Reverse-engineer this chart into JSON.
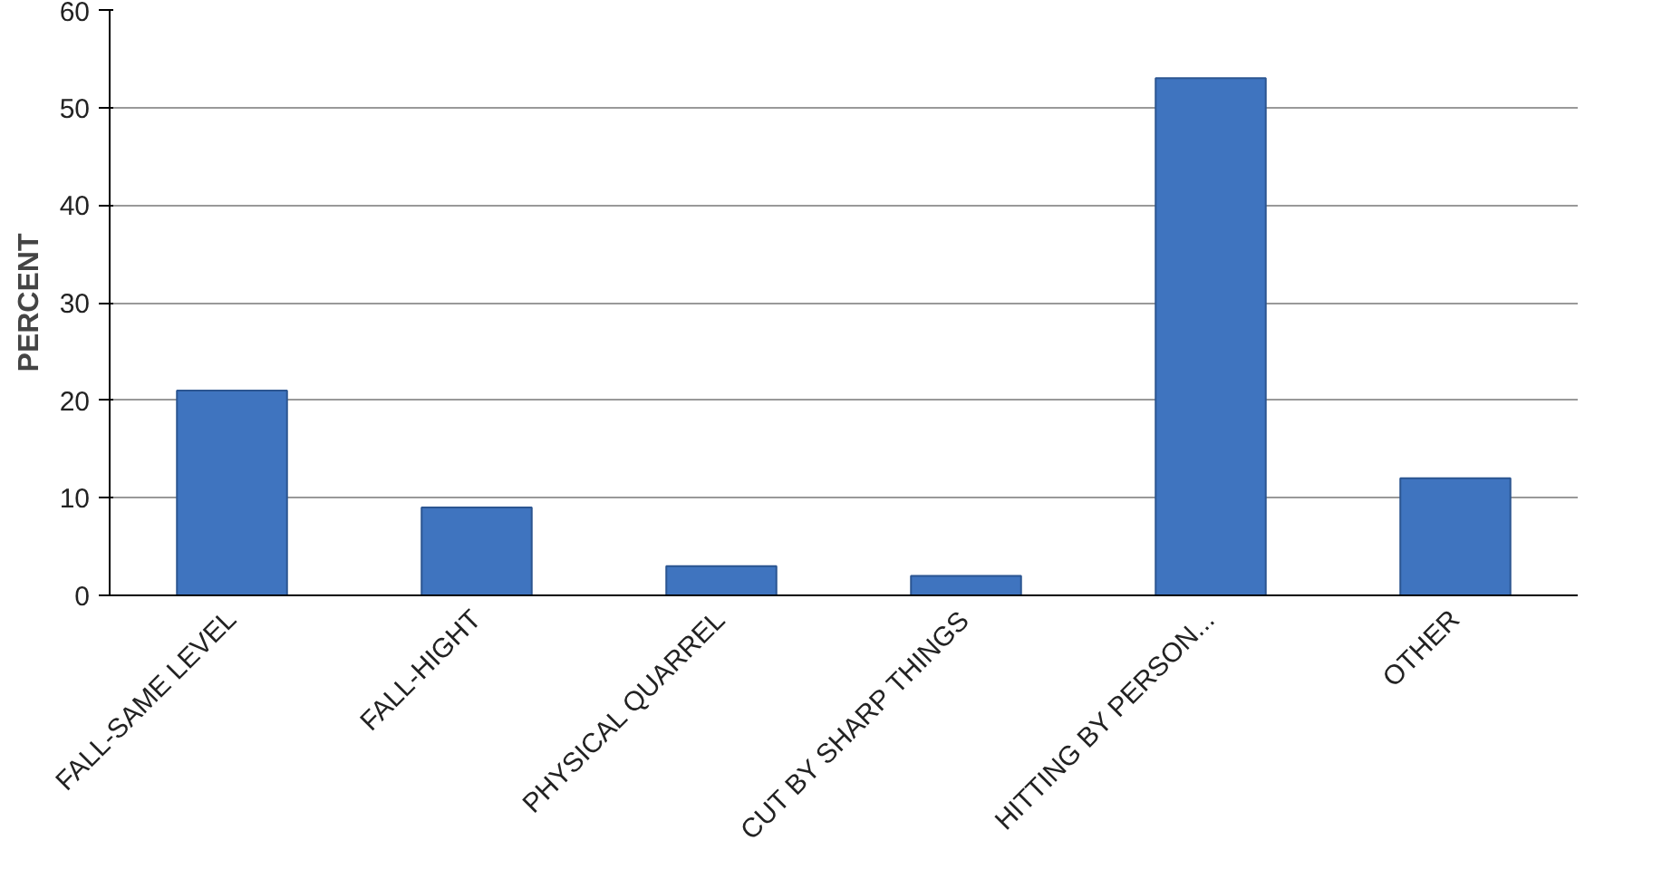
{
  "chart_data": {
    "type": "bar",
    "ylabel": "PERCENT",
    "categories": [
      "FALL-SAME LEVEL",
      "FALL-HIGHT",
      "PHYSICAL QUARREL",
      "CUT BY SHARP THINGS",
      "HITTING BY PERSON...",
      "OTHER"
    ],
    "values": [
      21,
      9,
      3,
      2,
      53,
      12
    ],
    "color": "#3f74bf",
    "ylim": [
      0,
      60
    ],
    "yticks": [
      0,
      10,
      20,
      30,
      40,
      50,
      60
    ],
    "grid": "y"
  }
}
